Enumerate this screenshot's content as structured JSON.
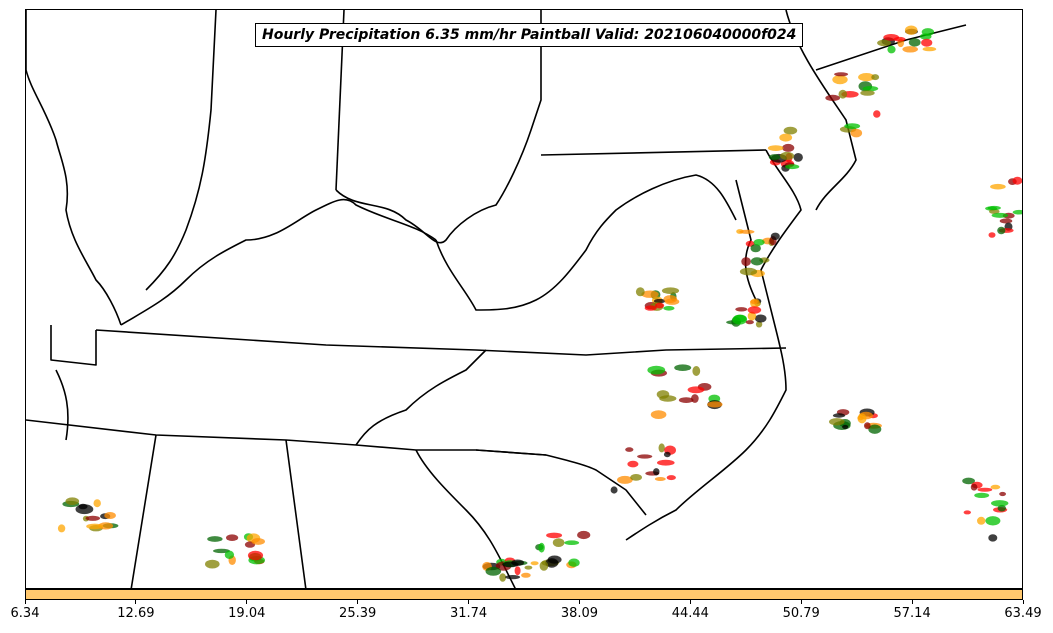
{
  "map": {
    "title": "Hourly Precipitation 6.35 mm/hr Paintball Valid: 202106040000f024",
    "boundary_color": "#000000",
    "background_color": "#ffffff"
  },
  "legend": {
    "colorbar_color": "#ffc86e",
    "tick_labels": [
      "6.34",
      "12.69",
      "19.04",
      "25.39",
      "31.74",
      "38.09",
      "44.44",
      "50.79",
      "57.14",
      "63.49"
    ]
  },
  "paintball_colors": [
    "#ff0000",
    "#ff8c00",
    "#8b0000",
    "#808000",
    "#00c000",
    "#006400",
    "#ffa500",
    "#000000"
  ]
}
